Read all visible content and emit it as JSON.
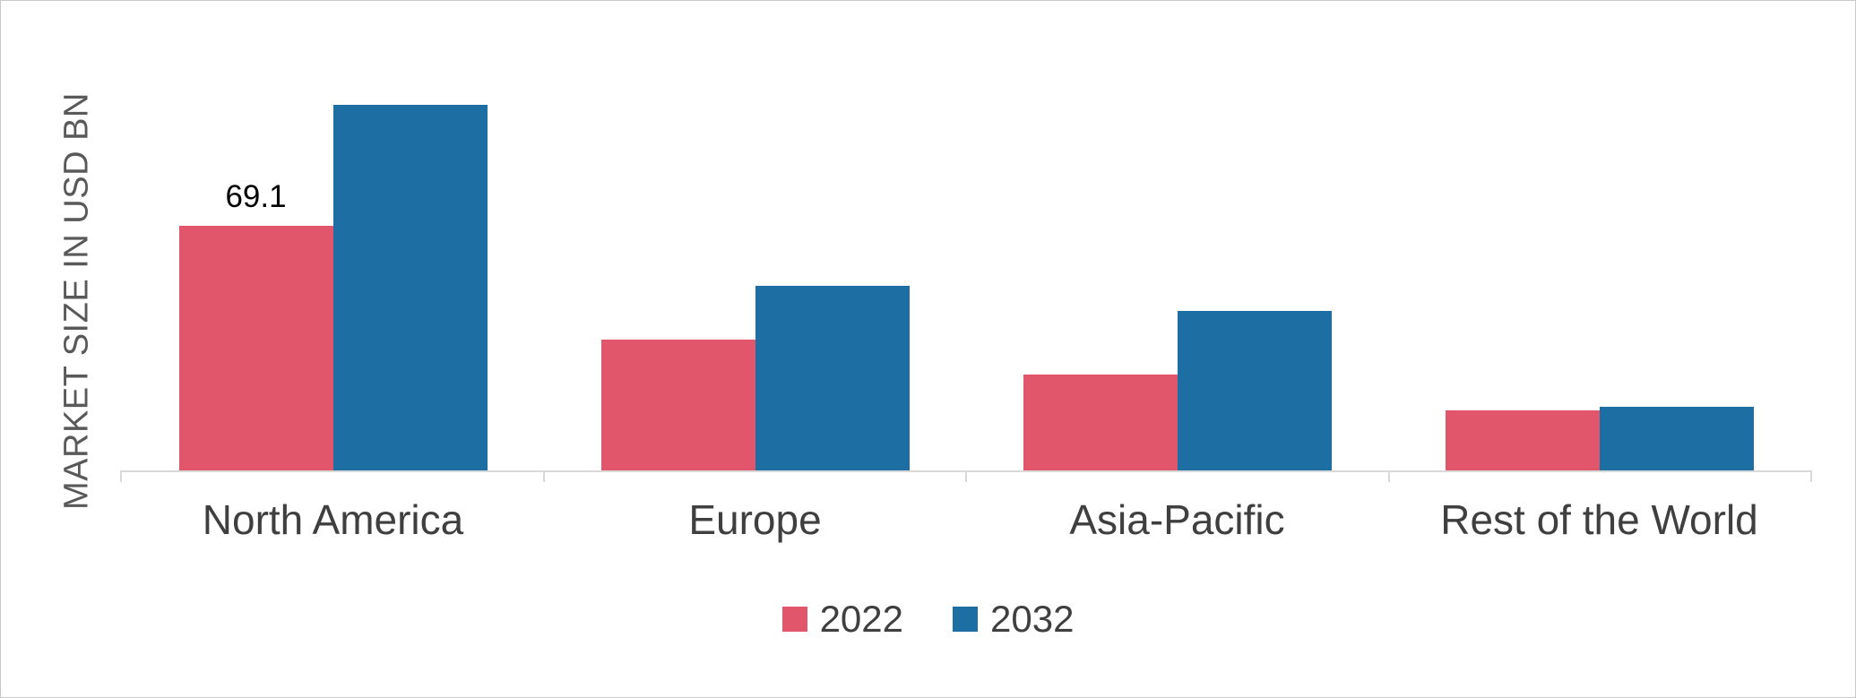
{
  "chart_data": {
    "type": "bar",
    "title": "",
    "xlabel": "",
    "ylabel": "MARKET SIZE IN USD BN",
    "categories": [
      "North America",
      "Europe",
      "Asia-Pacific",
      "Rest of the World"
    ],
    "series": [
      {
        "name": "2022",
        "color": "#e2566c",
        "values": [
          69.1,
          37,
          27,
          17
        ]
      },
      {
        "name": "2032",
        "color": "#1d6fa3",
        "values": [
          103,
          52,
          45,
          18
        ]
      }
    ],
    "ylim": [
      0,
      115
    ],
    "grid": false,
    "legend_position": "bottom",
    "annotations": [
      {
        "text": "69.1",
        "series_index": 0,
        "category_index": 0
      }
    ],
    "colors": {
      "axis": "#d9d9d9",
      "category_label": "#3f3f3f",
      "legend_label": "#3f3f3f",
      "ylabel": "#595959",
      "data_label": "#000000"
    }
  }
}
